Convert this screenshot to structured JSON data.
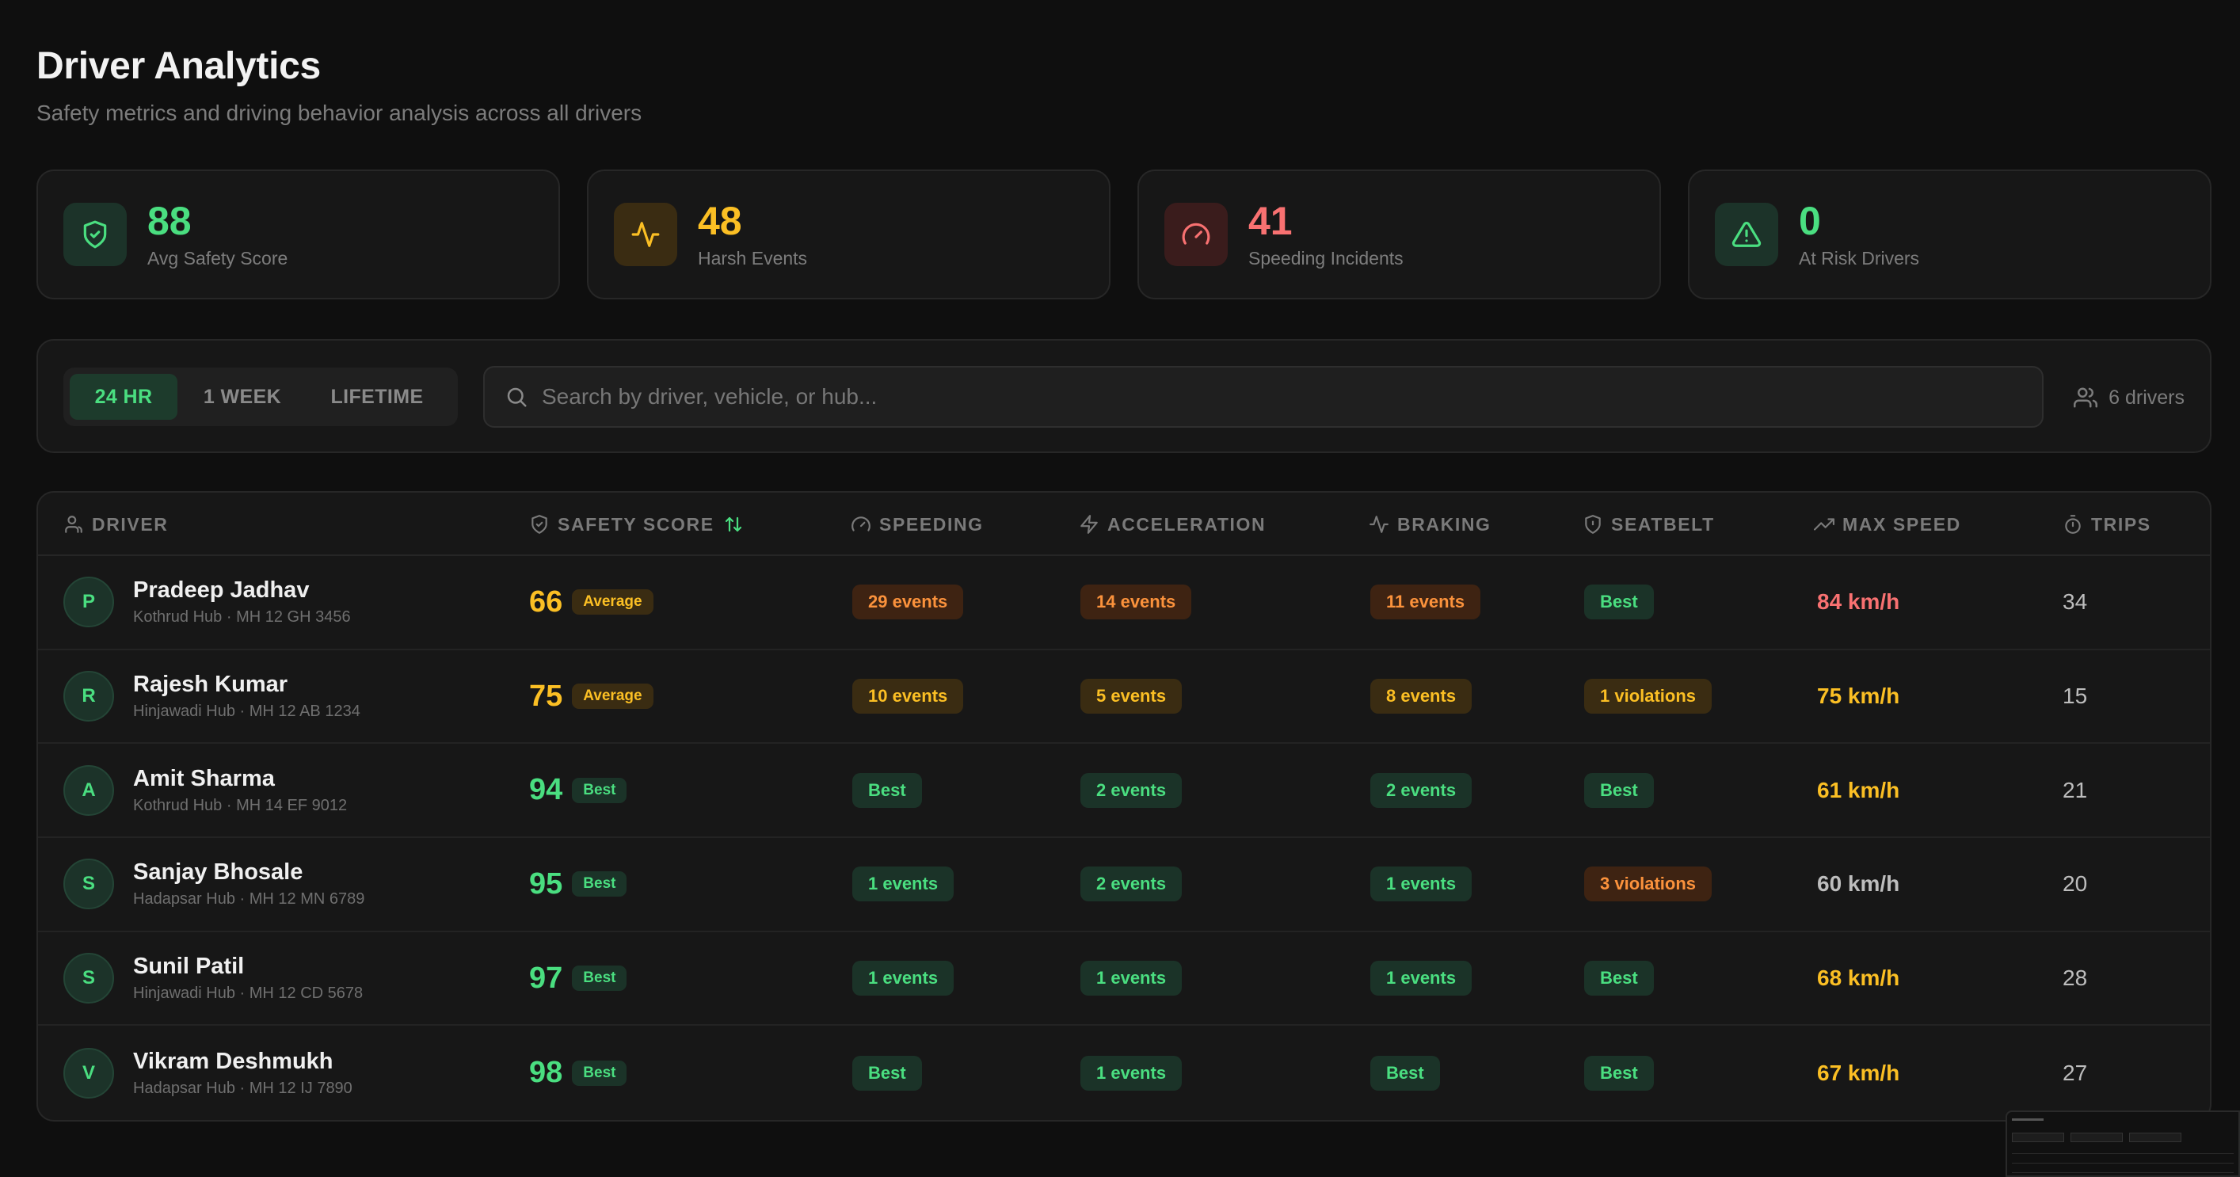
{
  "header": {
    "title": "Driver Analytics",
    "subtitle": "Safety metrics and driving behavior analysis across all drivers"
  },
  "stats": [
    {
      "value": "88",
      "label": "Avg Safety Score",
      "icon": "shield-check-icon",
      "color": "#4ade80"
    },
    {
      "value": "48",
      "label": "Harsh Events",
      "icon": "activity-icon",
      "color": "#fbbf24"
    },
    {
      "value": "41",
      "label": "Speeding Incidents",
      "icon": "gauge-icon",
      "color": "#f87171"
    },
    {
      "value": "0",
      "label": "At Risk Drivers",
      "icon": "alert-triangle-icon",
      "color": "#4ade80"
    }
  ],
  "filters": {
    "tabs": [
      "24 HR",
      "1 WEEK",
      "LIFETIME"
    ],
    "active_tab": "24 HR",
    "search_placeholder": "Search by driver, vehicle, or hub...",
    "driver_count": "6 drivers"
  },
  "table": {
    "columns": [
      "DRIVER",
      "SAFETY SCORE",
      "SPEEDING",
      "ACCELERATION",
      "BRAKING",
      "SEATBELT",
      "MAX SPEED",
      "TRIPS"
    ],
    "rows": [
      {
        "initial": "P",
        "name": "Pradeep Jadhav",
        "meta": "Kothrud Hub · MH 12 GH 3456",
        "score": "66",
        "score_label": "Average",
        "speeding": "29 events",
        "acceleration": "14 events",
        "braking": "11 events",
        "seatbelt": "Best",
        "max_speed": "84 km/h",
        "trips": "34"
      },
      {
        "initial": "R",
        "name": "Rajesh Kumar",
        "meta": "Hinjawadi Hub · MH 12 AB 1234",
        "score": "75",
        "score_label": "Average",
        "speeding": "10 events",
        "acceleration": "5 events",
        "braking": "8 events",
        "seatbelt": "1 violations",
        "max_speed": "75 km/h",
        "trips": "15"
      },
      {
        "initial": "A",
        "name": "Amit Sharma",
        "meta": "Kothrud Hub · MH 14 EF 9012",
        "score": "94",
        "score_label": "Best",
        "speeding": "Best",
        "acceleration": "2 events",
        "braking": "2 events",
        "seatbelt": "Best",
        "max_speed": "61 km/h",
        "trips": "21"
      },
      {
        "initial": "S",
        "name": "Sanjay Bhosale",
        "meta": "Hadapsar Hub · MH 12 MN 6789",
        "score": "95",
        "score_label": "Best",
        "speeding": "1 events",
        "acceleration": "2 events",
        "braking": "1 events",
        "seatbelt": "3 violations",
        "max_speed": "60 km/h",
        "trips": "20"
      },
      {
        "initial": "S",
        "name": "Sunil Patil",
        "meta": "Hinjawadi Hub · MH 12 CD 5678",
        "score": "97",
        "score_label": "Best",
        "speeding": "1 events",
        "acceleration": "1 events",
        "braking": "1 events",
        "seatbelt": "Best",
        "max_speed": "68 km/h",
        "trips": "28"
      },
      {
        "initial": "V",
        "name": "Vikram Deshmukh",
        "meta": "Hadapsar Hub · MH 12 IJ 7890",
        "score": "98",
        "score_label": "Best",
        "speeding": "Best",
        "acceleration": "1 events",
        "braking": "Best",
        "seatbelt": "Best",
        "max_speed": "67 km/h",
        "trips": "27"
      }
    ]
  },
  "colors": {
    "green": "#4ade80",
    "amber": "#fbbf24",
    "orange": "#fb923c",
    "red": "#f87171",
    "gray": "#bdbdbd"
  }
}
